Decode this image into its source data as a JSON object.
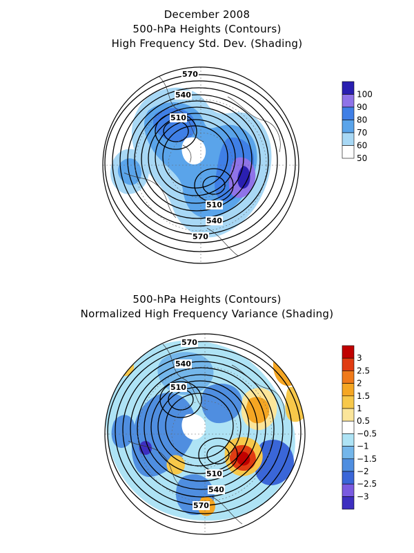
{
  "top_panel": {
    "title_line1": "December 2008",
    "title_line2": "500-hPa Heights (Contours)",
    "title_line3": "High Frequency Std. Dev. (Shading)",
    "contour_labels": [
      "570",
      "540",
      "510",
      "510",
      "540",
      "570"
    ],
    "colorbar": {
      "levels": [
        "100",
        "90",
        "80",
        "70",
        "60",
        "50"
      ],
      "colors": [
        "#2a1fb0",
        "#8f73e8",
        "#3f7fe6",
        "#5aa4ea",
        "#a8d8f5",
        "#ffffff"
      ]
    }
  },
  "bottom_panel": {
    "title_line1": "500-hPa Heights (Contours)",
    "title_line2": "Normalized High Frequency Variance (Shading)",
    "contour_labels": [
      "570",
      "540",
      "510",
      "510",
      "540",
      "570"
    ],
    "colorbar": {
      "levels": [
        "3",
        "2.5",
        "2",
        "1.5",
        "1",
        "0.5",
        "−0.5",
        "−1",
        "−1.5",
        "−2",
        "−2.5",
        "−3"
      ],
      "colors": [
        "#c00000",
        "#e03c12",
        "#f07a1a",
        "#f5a623",
        "#f7c84a",
        "#fbe59a",
        "#ffffff",
        "#aee3f5",
        "#74b6ea",
        "#4f8ee0",
        "#3a66d8",
        "#7a5be0",
        "#3d2fc0"
      ]
    }
  }
}
